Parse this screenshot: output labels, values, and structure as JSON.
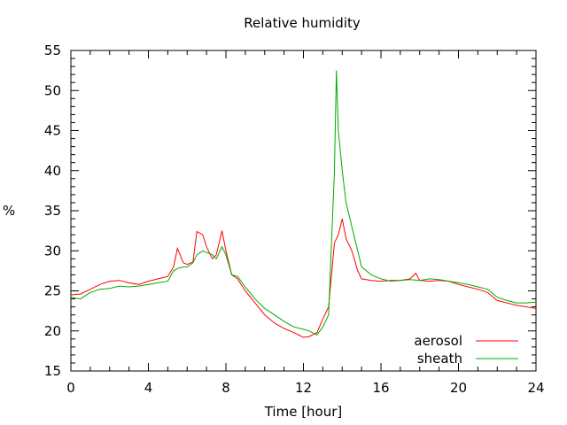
{
  "chart_data": {
    "type": "line",
    "title": "Relative humidity",
    "xlabel": "Time [hour]",
    "ylabel": "%",
    "xlim": [
      0,
      24
    ],
    "ylim": [
      15,
      55
    ],
    "xticks": [
      0,
      4,
      8,
      12,
      16,
      20,
      24
    ],
    "yticks": [
      15,
      20,
      25,
      30,
      35,
      40,
      45,
      50,
      55
    ],
    "grid": false,
    "legend_position": "bottom-right",
    "series": [
      {
        "name": "aerosol",
        "color": "#ff0000",
        "x": [
          0,
          0.5,
          1,
          1.5,
          2,
          2.5,
          3,
          3.5,
          4,
          4.5,
          5,
          5.3,
          5.5,
          5.8,
          6,
          6.3,
          6.5,
          6.8,
          7,
          7.3,
          7.5,
          7.8,
          8,
          8.3,
          8.6,
          9,
          9.5,
          10,
          10.5,
          11,
          11.5,
          12,
          12.3,
          12.7,
          13,
          13.3,
          13.6,
          13.8,
          14,
          14.2,
          14.5,
          14.8,
          15,
          15.5,
          16,
          16.5,
          17,
          17.5,
          17.8,
          18,
          18.5,
          19,
          19.5,
          20,
          20.5,
          21,
          21.5,
          22,
          22.5,
          23,
          23.5,
          24
        ],
        "y": [
          24.5,
          24.6,
          25.2,
          25.8,
          26.2,
          26.3,
          26.0,
          25.8,
          26.2,
          26.5,
          26.8,
          28.0,
          30.3,
          28.5,
          28.3,
          28.6,
          32.4,
          32.0,
          30.5,
          29.0,
          29.5,
          32.5,
          30.0,
          27.0,
          26.5,
          25.0,
          23.5,
          22.0,
          21.0,
          20.3,
          19.8,
          19.2,
          19.3,
          19.8,
          21.5,
          23.0,
          31.0,
          32.0,
          34.0,
          31.5,
          30.0,
          27.5,
          26.5,
          26.3,
          26.2,
          26.3,
          26.3,
          26.5,
          27.2,
          26.3,
          26.2,
          26.3,
          26.2,
          25.8,
          25.5,
          25.2,
          24.8,
          23.8,
          23.5,
          23.2,
          23.0,
          22.8
        ]
      },
      {
        "name": "sheath",
        "color": "#00aa00",
        "x": [
          0,
          0.5,
          1,
          1.5,
          2,
          2.5,
          3,
          3.5,
          4,
          4.5,
          5,
          5.3,
          5.5,
          5.8,
          6,
          6.3,
          6.5,
          6.8,
          7,
          7.3,
          7.5,
          7.8,
          8,
          8.3,
          8.6,
          9,
          9.5,
          10,
          10.5,
          11,
          11.5,
          12,
          12.3,
          12.7,
          13,
          13.3,
          13.6,
          13.7,
          13.8,
          14,
          14.2,
          14.5,
          14.8,
          15,
          15.5,
          16,
          16.5,
          17,
          17.5,
          18,
          18.5,
          19,
          19.5,
          20,
          20.5,
          21,
          21.5,
          22,
          22.5,
          23,
          23.5,
          24
        ],
        "y": [
          24.2,
          24.0,
          24.8,
          25.2,
          25.3,
          25.6,
          25.5,
          25.6,
          25.8,
          26.0,
          26.2,
          27.5,
          27.8,
          28.0,
          28.0,
          28.5,
          29.5,
          30.0,
          29.8,
          29.5,
          29.0,
          30.5,
          29.5,
          27.0,
          26.8,
          25.5,
          24.0,
          22.8,
          22.0,
          21.2,
          20.5,
          20.2,
          20.0,
          19.5,
          20.5,
          22.0,
          40.0,
          52.5,
          45.0,
          40.0,
          36.0,
          33.0,
          30.0,
          28.0,
          27.0,
          26.5,
          26.2,
          26.3,
          26.4,
          26.3,
          26.5,
          26.4,
          26.2,
          26.0,
          25.8,
          25.5,
          25.2,
          24.2,
          23.8,
          23.5,
          23.5,
          23.6
        ]
      }
    ]
  }
}
